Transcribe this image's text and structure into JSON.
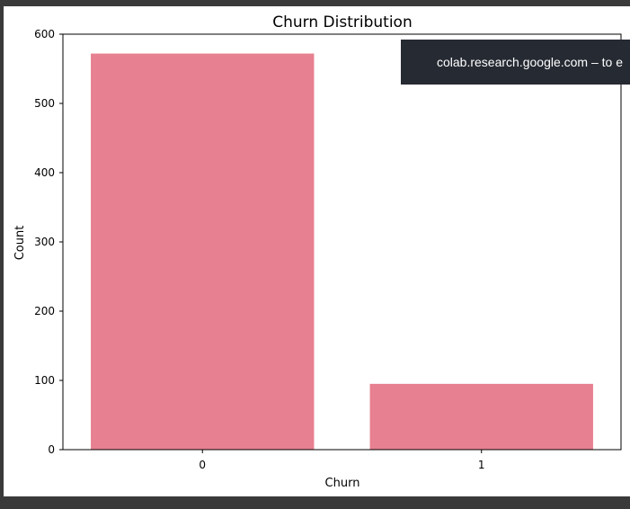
{
  "chart_data": {
    "type": "bar",
    "title": "Churn Distribution",
    "xlabel": "Churn",
    "ylabel": "Count",
    "categories": [
      "0",
      "1"
    ],
    "values": [
      572,
      95
    ],
    "ylim": [
      0,
      600
    ],
    "yticks": [
      "0",
      "100",
      "200",
      "300",
      "400",
      "500",
      "600"
    ],
    "grid": false,
    "colors": {
      "bar": "#e78091",
      "axis": "#000000"
    }
  },
  "toast": {
    "text": "colab.research.google.com – to e"
  }
}
